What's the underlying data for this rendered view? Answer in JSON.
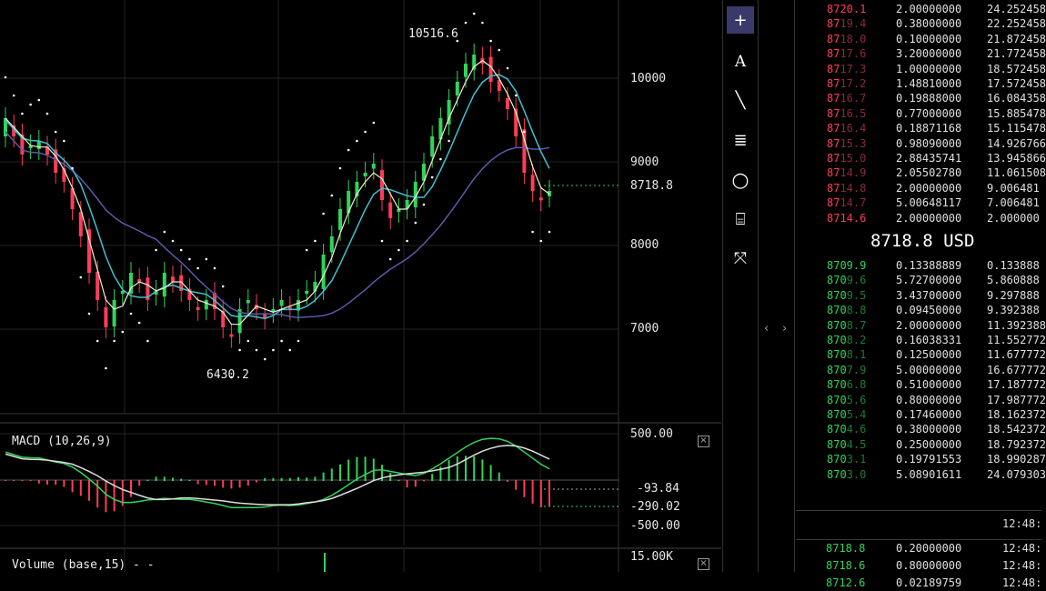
{
  "chart": {
    "price_ticks": [
      "10000",
      "9000",
      "8000",
      "7000"
    ],
    "current_price": "8718.8",
    "high_label": "10516.6",
    "low_label": "6430.2",
    "macd": {
      "title": "MACD (10,26,9)",
      "ticks": [
        "500.00",
        "-500.00"
      ],
      "value_labels": [
        "-93.84",
        "-290.02"
      ]
    },
    "volume": {
      "title": "Volume (base,15) - -",
      "tick": "15.00K"
    },
    "colors": {
      "up": "#30d45a",
      "down": "#ff3d5a",
      "ma_fast": "#f0f0d0",
      "ma_mid": "#40c0d0",
      "ma_slow": "#5a5aaa"
    }
  },
  "toolbar": {
    "tools": [
      {
        "icon": "crosshair-icon",
        "glyph": "+",
        "active": true
      },
      {
        "icon": "text-tool-icon",
        "glyph": "A",
        "active": false
      },
      {
        "icon": "line-tool-icon",
        "glyph": "╲",
        "active": false
      },
      {
        "icon": "horizontal-lines-icon",
        "glyph": "≣",
        "active": false
      },
      {
        "icon": "circle-tool-icon",
        "glyph": "○",
        "active": false
      },
      {
        "icon": "fibonacci-tool-icon",
        "glyph": "⌸",
        "active": false
      },
      {
        "icon": "move-arrows-icon",
        "glyph": "⤧",
        "active": false
      }
    ]
  },
  "splitter": {
    "left": "‹",
    "right": "›"
  },
  "orderbook": {
    "asks": [
      {
        "bright": "8720.1",
        "dim": "",
        "amount": "2.00000000",
        "total": "24.252458"
      },
      {
        "bright": "87",
        "dim": "19.4",
        "amount": "0.38000000",
        "total": "22.252458"
      },
      {
        "bright": "87",
        "dim": "18.0",
        "amount": "0.10000000",
        "total": "21.872458"
      },
      {
        "bright": "87",
        "dim": "17.6",
        "amount": "3.20000000",
        "total": "21.772458"
      },
      {
        "bright": "87",
        "dim": "17.3",
        "amount": "1.00000000",
        "total": "18.572458"
      },
      {
        "bright": "87",
        "dim": "17.2",
        "amount": "1.48810000",
        "total": "17.572458"
      },
      {
        "bright": "87",
        "dim": "16.7",
        "amount": "0.19888000",
        "total": "16.084358"
      },
      {
        "bright": "87",
        "dim": "16.5",
        "amount": "0.77000000",
        "total": "15.885478"
      },
      {
        "bright": "87",
        "dim": "16.4",
        "amount": "0.18871168",
        "total": "15.115478"
      },
      {
        "bright": "87",
        "dim": "15.3",
        "amount": "0.98090000",
        "total": "14.926766"
      },
      {
        "bright": "87",
        "dim": "15.0",
        "amount": "2.88435741",
        "total": "13.945866"
      },
      {
        "bright": "87",
        "dim": "14.9",
        "amount": "2.05502780",
        "total": "11.061508"
      },
      {
        "bright": "87",
        "dim": "14.8",
        "amount": "2.00000000",
        "total": "9.006481"
      },
      {
        "bright": "87",
        "dim": "14.7",
        "amount": "5.00648117",
        "total": "7.006481"
      },
      {
        "bright": "8714.6",
        "dim": "",
        "amount": "2.00000000",
        "total": "2.000000"
      }
    ],
    "mid_price": "8718.8 USD",
    "bids": [
      {
        "bright": "8709.9",
        "dim": "",
        "amount": "0.13388889",
        "total": "0.133888"
      },
      {
        "bright": "870",
        "dim": "9.6",
        "amount": "5.72700000",
        "total": "5.860888"
      },
      {
        "bright": "870",
        "dim": "9.5",
        "amount": "3.43700000",
        "total": "9.297888"
      },
      {
        "bright": "870",
        "dim": "8.8",
        "amount": "0.09450000",
        "total": "9.392388"
      },
      {
        "bright": "870",
        "dim": "8.7",
        "amount": "2.00000000",
        "total": "11.392388"
      },
      {
        "bright": "870",
        "dim": "8.2",
        "amount": "0.16038331",
        "total": "11.552772"
      },
      {
        "bright": "870",
        "dim": "8.1",
        "amount": "0.12500000",
        "total": "11.677772"
      },
      {
        "bright": "870",
        "dim": "7.9",
        "amount": "5.00000000",
        "total": "16.677772"
      },
      {
        "bright": "870",
        "dim": "6.8",
        "amount": "0.51000000",
        "total": "17.187772"
      },
      {
        "bright": "870",
        "dim": "5.6",
        "amount": "0.80000000",
        "total": "17.987772"
      },
      {
        "bright": "870",
        "dim": "5.4",
        "amount": "0.17460000",
        "total": "18.162372"
      },
      {
        "bright": "870",
        "dim": "4.6",
        "amount": "0.38000000",
        "total": "18.542372"
      },
      {
        "bright": "870",
        "dim": "4.5",
        "amount": "0.25000000",
        "total": "18.792372"
      },
      {
        "bright": "870",
        "dim": "3.1",
        "amount": "0.19791553",
        "total": "18.990287"
      },
      {
        "bright": "870",
        "dim": "3.0",
        "amount": "5.08901611",
        "total": "24.079303"
      }
    ],
    "time_header": "12:48:",
    "trades": [
      {
        "price": "8718.8",
        "amount": "0.20000000",
        "time": "12:48:"
      },
      {
        "price": "8718.6",
        "amount": "0.80000000",
        "time": "12:48:"
      },
      {
        "price": "8712.6",
        "amount": "0.02189759",
        "time": "12:48:"
      }
    ]
  }
}
